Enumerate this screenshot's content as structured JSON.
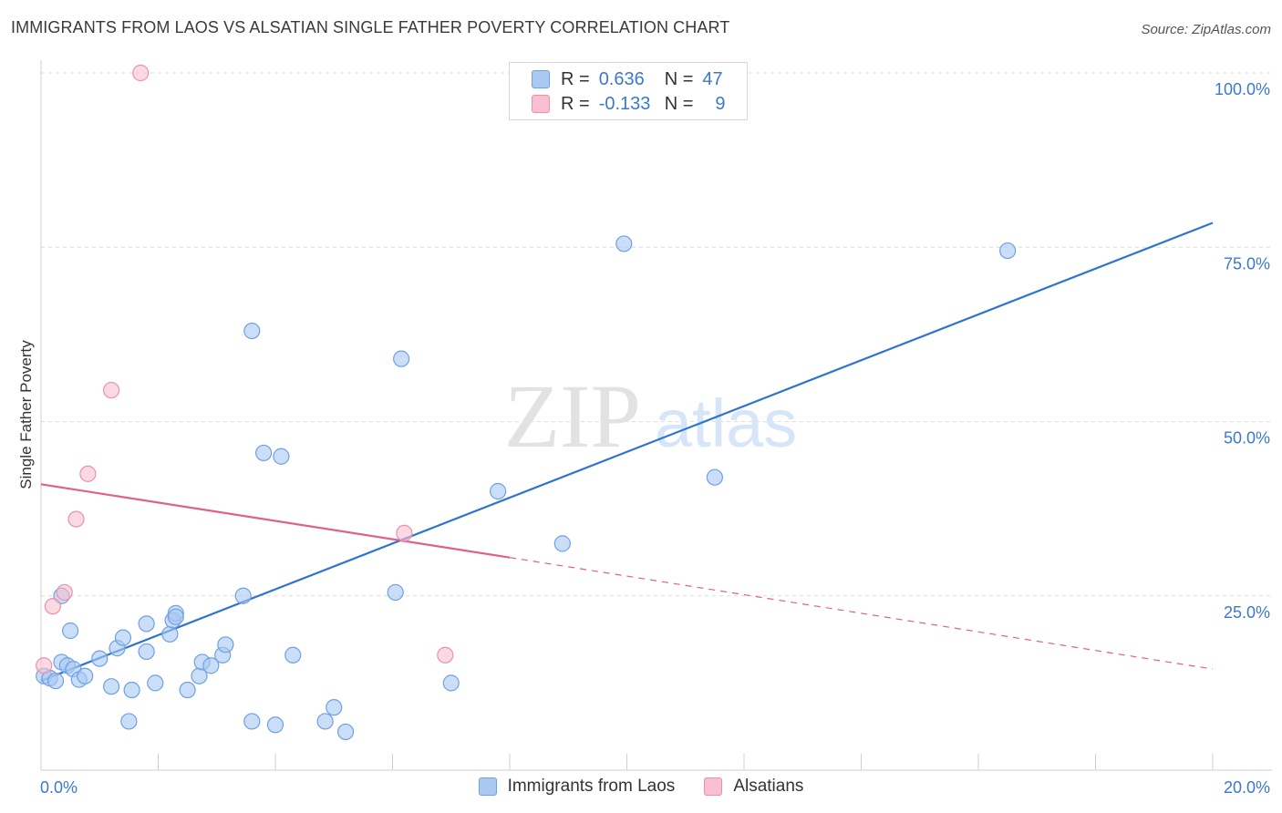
{
  "title": "IMMIGRANTS FROM LAOS VS ALSATIAN SINGLE FATHER POVERTY CORRELATION CHART",
  "source": "Source: ZipAtlas.com",
  "watermark": {
    "zip": "ZIP",
    "atlas": "atlas"
  },
  "legend_top": {
    "rows": [
      {
        "r_label": "R =",
        "r_value": "0.636",
        "n_label": "N =",
        "n_value": "47",
        "color": "#a9c8f2",
        "border": "#6fa0e3"
      },
      {
        "r_label": "R =",
        "r_value": "-0.133",
        "n_label": "N =",
        "n_value": "9",
        "color": "#f7bfd0",
        "border": "#ec90ad"
      }
    ]
  },
  "chart_data": {
    "type": "scatter",
    "xlabel": "",
    "ylabel": "Single Father Poverty",
    "xlim": [
      0,
      20
    ],
    "ylim": [
      0,
      100
    ],
    "x_tick_labels": [
      "0.0%",
      "20.0%"
    ],
    "y_tick_labels": [
      "100.0%",
      "75.0%",
      "50.0%",
      "25.0%"
    ],
    "y_gridlines": [
      100,
      75,
      50,
      25
    ],
    "legend_placement": "bottom-center",
    "series": [
      {
        "name": "Immigrants from Laos",
        "color": "#a9c8f2",
        "stroke": "#6fa0e3",
        "line_color": "#2f74d0",
        "points": [
          [
            0.05,
            13.5
          ],
          [
            0.15,
            13.2
          ],
          [
            0.25,
            12.8
          ],
          [
            0.35,
            15.5
          ],
          [
            0.45,
            15.0
          ],
          [
            0.55,
            14.5
          ],
          [
            0.65,
            13.0
          ],
          [
            0.75,
            13.5
          ],
          [
            1.0,
            16.0
          ],
          [
            1.2,
            12.0
          ],
          [
            1.3,
            17.5
          ],
          [
            1.4,
            19.0
          ],
          [
            1.55,
            11.5
          ],
          [
            1.8,
            17.0
          ],
          [
            1.95,
            12.5
          ],
          [
            2.2,
            19.5
          ],
          [
            2.25,
            21.5
          ],
          [
            2.3,
            22.5
          ],
          [
            2.5,
            11.5
          ],
          [
            2.7,
            13.5
          ],
          [
            2.75,
            15.5
          ],
          [
            2.9,
            15.0
          ],
          [
            3.1,
            16.5
          ],
          [
            3.15,
            18.0
          ],
          [
            1.5,
            7.0
          ],
          [
            2.3,
            22.0
          ],
          [
            1.8,
            21.0
          ],
          [
            3.45,
            25.0
          ],
          [
            3.6,
            7.0
          ],
          [
            3.8,
            45.5
          ],
          [
            4.0,
            6.5
          ],
          [
            4.3,
            16.5
          ],
          [
            4.1,
            45.0
          ],
          [
            4.85,
            7.0
          ],
          [
            5.0,
            9.0
          ],
          [
            5.2,
            5.5
          ],
          [
            3.6,
            63.0
          ],
          [
            6.15,
            59.0
          ],
          [
            6.05,
            25.5
          ],
          [
            7.0,
            12.5
          ],
          [
            7.8,
            40.0
          ],
          [
            8.9,
            32.5
          ],
          [
            9.95,
            75.5
          ],
          [
            11.5,
            42.0
          ],
          [
            16.5,
            74.5
          ],
          [
            0.35,
            25.0
          ],
          [
            0.5,
            20.0
          ]
        ],
        "trend": {
          "x": [
            0,
            20
          ],
          "y": [
            12.8,
            78.5
          ]
        }
      },
      {
        "name": "Alsatians",
        "color": "#f7bfd0",
        "stroke": "#ec90ad",
        "line_color": "#e0608a",
        "points": [
          [
            0.05,
            15.0
          ],
          [
            0.2,
            23.5
          ],
          [
            0.4,
            25.5
          ],
          [
            0.6,
            36.0
          ],
          [
            0.8,
            42.5
          ],
          [
            1.2,
            54.5
          ],
          [
            1.7,
            100.0
          ],
          [
            6.2,
            34.0
          ],
          [
            6.9,
            16.5
          ]
        ],
        "trend": {
          "x": [
            0,
            8
          ],
          "y": [
            41.0,
            30.5
          ],
          "dashed_x": [
            8,
            20
          ],
          "dashed_y": [
            30.5,
            14.5
          ]
        }
      }
    ]
  },
  "bottom_legend": [
    {
      "label": "Immigrants from Laos",
      "color": "#a9c8f2",
      "border": "#6fa0e3"
    },
    {
      "label": "Alsatians",
      "color": "#f7bfd0",
      "border": "#ec90ad"
    }
  ]
}
